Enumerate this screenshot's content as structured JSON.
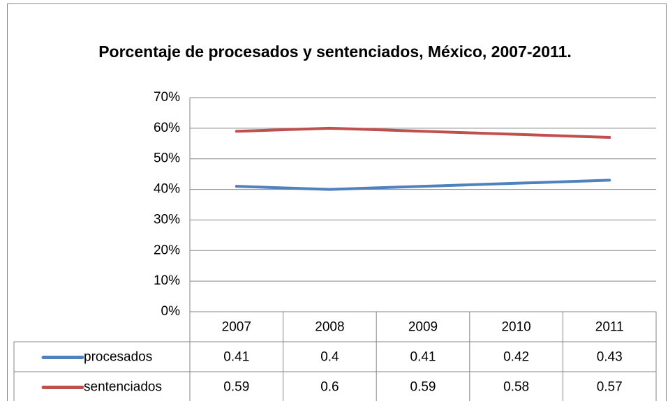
{
  "chart_data": {
    "type": "line",
    "title": "Porcentaje de procesados y sentenciados, México, 2007-2011.",
    "categories": [
      "2007",
      "2008",
      "2009",
      "2010",
      "2011"
    ],
    "series": [
      {
        "name": "procesados",
        "color": "#4f81bd",
        "values": [
          0.41,
          0.4,
          0.41,
          0.42,
          0.43
        ]
      },
      {
        "name": "sentenciados",
        "color": "#c0504d",
        "values": [
          0.59,
          0.6,
          0.59,
          0.58,
          0.57
        ]
      }
    ],
    "ylim": [
      0,
      0.7
    ],
    "yticks": [
      {
        "value": 0,
        "label": "0%"
      },
      {
        "value": 0.1,
        "label": "10%"
      },
      {
        "value": 0.2,
        "label": "20%"
      },
      {
        "value": 0.3,
        "label": "30%"
      },
      {
        "value": 0.4,
        "label": "40%"
      },
      {
        "value": 0.5,
        "label": "50%"
      },
      {
        "value": 0.6,
        "label": "60%"
      },
      {
        "value": 0.7,
        "label": "70%"
      }
    ],
    "grid": true,
    "data_table": true
  }
}
